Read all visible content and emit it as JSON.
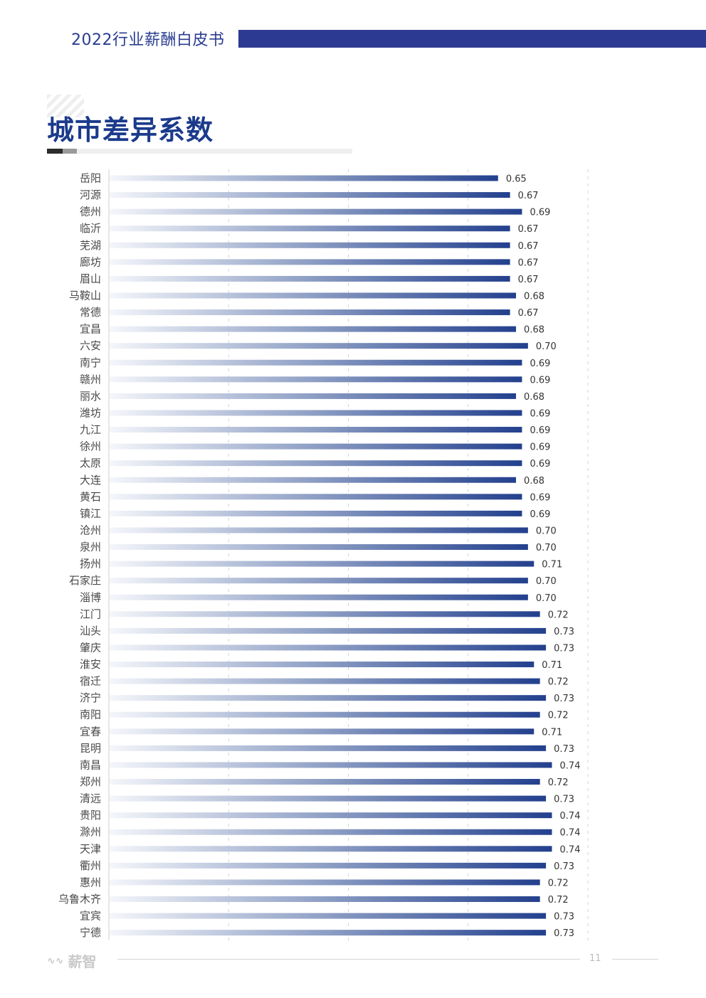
{
  "header": {
    "title": "2022行业薪酬白皮书"
  },
  "section": {
    "title": "城市差异系数"
  },
  "footer": {
    "logo_text": "薪智",
    "logo_icon": "wave-logo-icon",
    "page_number": "11"
  },
  "colors": {
    "brand": "#2c3a92",
    "bar_end": "#23408e",
    "bar_start": "#f4f6fa"
  },
  "chart_data": {
    "type": "bar",
    "orientation": "horizontal",
    "categories": [
      "岳阳",
      "河源",
      "德州",
      "临沂",
      "芜湖",
      "廊坊",
      "眉山",
      "马鞍山",
      "常德",
      "宜昌",
      "六安",
      "南宁",
      "赣州",
      "丽水",
      "潍坊",
      "九江",
      "徐州",
      "太原",
      "大连",
      "黄石",
      "镇江",
      "沧州",
      "泉州",
      "扬州",
      "石家庄",
      "淄博",
      "江门",
      "汕头",
      "肇庆",
      "淮安",
      "宿迁",
      "济宁",
      "南阳",
      "宜春",
      "昆明",
      "南昌",
      "郑州",
      "清远",
      "贵阳",
      "滁州",
      "天津",
      "衢州",
      "惠州",
      "乌鲁木齐",
      "宜宾",
      "宁德"
    ],
    "values": [
      0.65,
      0.67,
      0.69,
      0.67,
      0.67,
      0.67,
      0.67,
      0.68,
      0.67,
      0.68,
      0.7,
      0.69,
      0.69,
      0.68,
      0.69,
      0.69,
      0.69,
      0.69,
      0.68,
      0.69,
      0.69,
      0.7,
      0.7,
      0.71,
      0.7,
      0.7,
      0.72,
      0.73,
      0.73,
      0.71,
      0.72,
      0.73,
      0.72,
      0.71,
      0.73,
      0.74,
      0.72,
      0.73,
      0.74,
      0.74,
      0.74,
      0.73,
      0.72,
      0.72,
      0.73,
      0.73
    ],
    "value_labels": [
      "0.65",
      "0.67",
      "0.69",
      "0.67",
      "0.67",
      "0.67",
      "0.67",
      "0.68",
      "0.67",
      "0.68",
      "0.70",
      "0.69",
      "0.69",
      "0.68",
      "0.69",
      "0.69",
      "0.69",
      "0.69",
      "0.68",
      "0.69",
      "0.69",
      "0.70",
      "0.70",
      "0.71",
      "0.70",
      "0.70",
      "0.72",
      "0.73",
      "0.73",
      "0.71",
      "0.72",
      "0.73",
      "0.72",
      "0.71",
      "0.73",
      "0.74",
      "0.72",
      "0.73",
      "0.74",
      "0.74",
      "0.74",
      "0.73",
      "0.72",
      "0.72",
      "0.73",
      "0.73"
    ],
    "xlim": [
      0,
      0.8
    ],
    "grid": true,
    "legend": "none"
  }
}
